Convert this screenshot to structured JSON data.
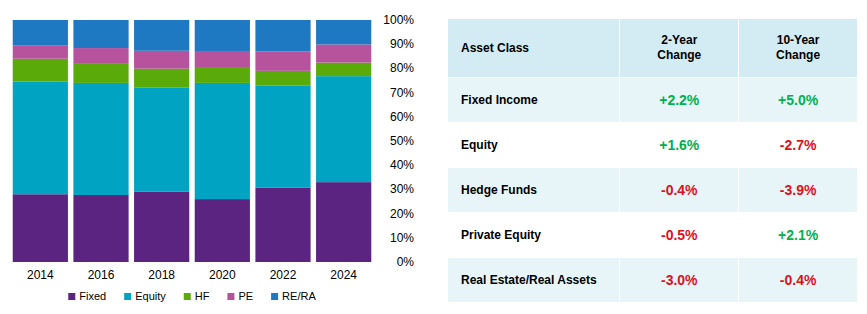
{
  "chart_data": {
    "type": "bar",
    "stacked": true,
    "categories": [
      "2014",
      "2016",
      "2018",
      "2020",
      "2022",
      "2024"
    ],
    "series": [
      {
        "name": "Fixed",
        "color": "#5b2481",
        "values": [
          28.0,
          27.7,
          29.0,
          26.0,
          30.8,
          33.0
        ]
      },
      {
        "name": "Equity",
        "color": "#00a3c2",
        "values": [
          46.5,
          46.3,
          43.0,
          48.0,
          42.2,
          43.8
        ]
      },
      {
        "name": "HF",
        "color": "#5aab0a",
        "values": [
          9.5,
          8.2,
          7.9,
          6.2,
          6.0,
          5.6
        ]
      },
      {
        "name": "PE",
        "color": "#b7529d",
        "values": [
          5.4,
          6.2,
          7.4,
          7.0,
          8.0,
          7.5
        ]
      },
      {
        "name": "RE/RA",
        "color": "#1f78c2",
        "values": [
          10.6,
          11.6,
          12.7,
          12.8,
          13.0,
          10.1
        ]
      }
    ],
    "ylim": [
      0,
      100
    ],
    "yticks": [
      {
        "value": 0,
        "label": "0%"
      },
      {
        "value": 10,
        "label": "10%"
      },
      {
        "value": 20,
        "label": "20%"
      },
      {
        "value": 30,
        "label": "30%"
      },
      {
        "value": 40,
        "label": "40%"
      },
      {
        "value": 50,
        "label": "50%"
      },
      {
        "value": 60,
        "label": "60%"
      },
      {
        "value": 70,
        "label": "70%"
      },
      {
        "value": 80,
        "label": "80%"
      },
      {
        "value": 90,
        "label": "90%"
      },
      {
        "value": 100,
        "label": "100%"
      }
    ],
    "grid": false,
    "legend": "bottom"
  },
  "table": {
    "header": [
      "Asset Class",
      "2-Year Change",
      "10-Year Change"
    ],
    "rows": [
      [
        "Fixed Income",
        "+2.2%",
        "+5.0%"
      ],
      [
        "Equity",
        "+1.6%",
        "-2.7%"
      ],
      [
        "Hedge Funds",
        "-0.4%",
        "-3.9%"
      ],
      [
        "Private Equity",
        "-0.5%",
        "+2.1%"
      ],
      [
        "Real Estate/Real Assets",
        "-3.0%",
        "-0.4%"
      ]
    ]
  }
}
